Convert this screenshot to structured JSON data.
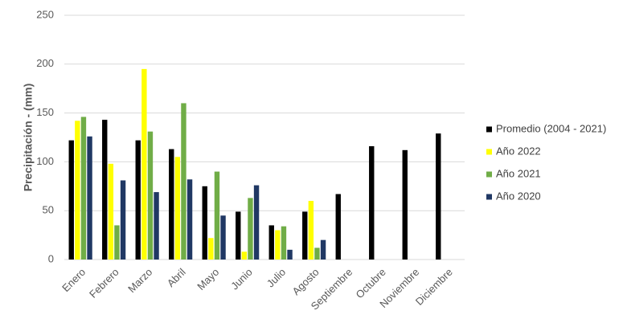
{
  "chart_data": {
    "type": "bar",
    "y_label": "Precipitación - (mm)",
    "categories": [
      "Enero",
      "Febrero",
      "Marzo",
      "Abril",
      "Mayo",
      "Junio",
      "Julio",
      "Agosto",
      "Septiembre",
      "Octubre",
      "Noviembre",
      "Diciembre"
    ],
    "series": [
      {
        "name": "Promedio (2004 - 2021)",
        "color": "#000000",
        "values": [
          122,
          143,
          122,
          113,
          75,
          49,
          35,
          49,
          67,
          116,
          112,
          129
        ]
      },
      {
        "name": "Año 2022",
        "color": "#ffff00",
        "values": [
          142,
          98,
          195,
          105,
          22,
          8,
          30,
          60,
          null,
          null,
          null,
          null
        ]
      },
      {
        "name": "Año 2021",
        "color": "#70ad47",
        "values": [
          146,
          35,
          131,
          160,
          90,
          63,
          34,
          12,
          null,
          null,
          null,
          null
        ]
      },
      {
        "name": "Año 2020",
        "color": "#203864",
        "values": [
          126,
          81,
          69,
          82,
          45,
          76,
          10,
          20,
          null,
          null,
          null,
          null
        ]
      }
    ],
    "ylim": [
      0,
      250
    ],
    "yticks": [
      0,
      50,
      100,
      150,
      200,
      250
    ],
    "grid": true,
    "legend": "right"
  }
}
